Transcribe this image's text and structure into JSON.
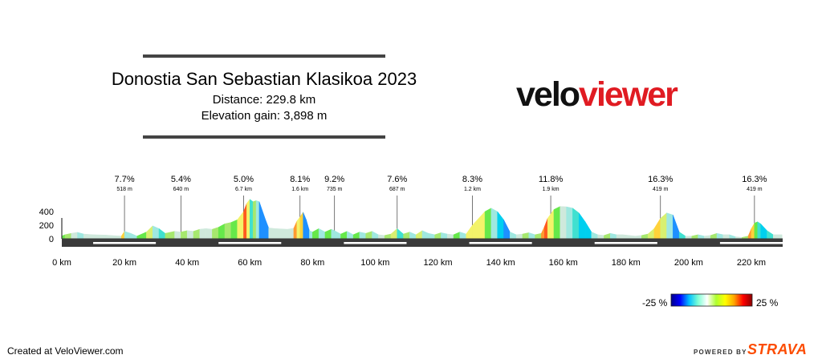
{
  "route": {
    "title": "Donostia San Sebastian Klasikoa 2023",
    "distance_label": "Distance: 229.8 km",
    "elevation_label": "Elevation gain: 3,898 m"
  },
  "logo": {
    "part1": "velo",
    "part2": "viewer"
  },
  "footer": {
    "created": "Created at VeloViewer.com",
    "powered_by": "POWERED BY",
    "strava": "STRAVA"
  },
  "gradient_legend": {
    "min_label": "-25 %",
    "max_label": "25 %",
    "colors": [
      "#00008b",
      "#0000ff",
      "#00bfff",
      "#7fffd4",
      "#ffffff",
      "#adff2f",
      "#ffff00",
      "#ffa500",
      "#ff0000",
      "#8b0000"
    ]
  },
  "chart_data": {
    "type": "area",
    "title": "",
    "xlabel": "",
    "ylabel": "",
    "xlim": [
      0,
      230
    ],
    "ylim": [
      0,
      600
    ],
    "x_ticks": [
      0,
      20,
      40,
      60,
      80,
      100,
      120,
      140,
      160,
      180,
      200,
      220
    ],
    "x_tick_labels": [
      "0 km",
      "20 km",
      "40 km",
      "60 km",
      "80 km",
      "100 km",
      "120 km",
      "140 km",
      "160 km",
      "180 km",
      "200 km",
      "220 km"
    ],
    "y_ticks": [
      0,
      200,
      400
    ],
    "y_tick_labels": [
      "0",
      "200",
      "400"
    ],
    "profile": [
      [
        0,
        40
      ],
      [
        1,
        60
      ],
      [
        3,
        80
      ],
      [
        5,
        95
      ],
      [
        7,
        70
      ],
      [
        10,
        60
      ],
      [
        14,
        55
      ],
      [
        17,
        45
      ],
      [
        19,
        40
      ],
      [
        20,
        110
      ],
      [
        22,
        80
      ],
      [
        24,
        40
      ],
      [
        27,
        100
      ],
      [
        29,
        190
      ],
      [
        31,
        150
      ],
      [
        33,
        80
      ],
      [
        36,
        110
      ],
      [
        38,
        100
      ],
      [
        40,
        120
      ],
      [
        42,
        110
      ],
      [
        44,
        140
      ],
      [
        46,
        150
      ],
      [
        48,
        140
      ],
      [
        50,
        170
      ],
      [
        52,
        220
      ],
      [
        54,
        240
      ],
      [
        56,
        280
      ],
      [
        58,
        400
      ],
      [
        59,
        520
      ],
      [
        60,
        580
      ],
      [
        61,
        545
      ],
      [
        62,
        560
      ],
      [
        63,
        545
      ],
      [
        65,
        280
      ],
      [
        66,
        160
      ],
      [
        68,
        150
      ],
      [
        70,
        145
      ],
      [
        72,
        140
      ],
      [
        74,
        155
      ],
      [
        75,
        260
      ],
      [
        76,
        320
      ],
      [
        77,
        390
      ],
      [
        78,
        280
      ],
      [
        79,
        120
      ],
      [
        80,
        100
      ],
      [
        82,
        150
      ],
      [
        84,
        100
      ],
      [
        86,
        140
      ],
      [
        87,
        120
      ],
      [
        89,
        70
      ],
      [
        91,
        110
      ],
      [
        93,
        60
      ],
      [
        95,
        100
      ],
      [
        97,
        80
      ],
      [
        99,
        110
      ],
      [
        101,
        60
      ],
      [
        103,
        50
      ],
      [
        105,
        70
      ],
      [
        107,
        150
      ],
      [
        109,
        70
      ],
      [
        111,
        100
      ],
      [
        113,
        60
      ],
      [
        115,
        120
      ],
      [
        117,
        80
      ],
      [
        119,
        60
      ],
      [
        121,
        90
      ],
      [
        123,
        70
      ],
      [
        125,
        60
      ],
      [
        127,
        100
      ],
      [
        129,
        70
      ],
      [
        131,
        200
      ],
      [
        133,
        300
      ],
      [
        135,
        400
      ],
      [
        137,
        450
      ],
      [
        139,
        400
      ],
      [
        141,
        280
      ],
      [
        143,
        100
      ],
      [
        145,
        60
      ],
      [
        147,
        70
      ],
      [
        149,
        90
      ],
      [
        151,
        60
      ],
      [
        153,
        80
      ],
      [
        154,
        180
      ],
      [
        155,
        300
      ],
      [
        157,
        430
      ],
      [
        159,
        475
      ],
      [
        161,
        470
      ],
      [
        163,
        450
      ],
      [
        165,
        380
      ],
      [
        167,
        250
      ],
      [
        169,
        100
      ],
      [
        171,
        60
      ],
      [
        173,
        50
      ],
      [
        175,
        80
      ],
      [
        177,
        60
      ],
      [
        179,
        60
      ],
      [
        181,
        50
      ],
      [
        183,
        40
      ],
      [
        185,
        50
      ],
      [
        187,
        70
      ],
      [
        189,
        150
      ],
      [
        191,
        300
      ],
      [
        193,
        380
      ],
      [
        195,
        350
      ],
      [
        197,
        100
      ],
      [
        199,
        40
      ],
      [
        201,
        40
      ],
      [
        203,
        60
      ],
      [
        205,
        40
      ],
      [
        207,
        50
      ],
      [
        209,
        80
      ],
      [
        211,
        60
      ],
      [
        213,
        60
      ],
      [
        215,
        30
      ],
      [
        217,
        20
      ],
      [
        219,
        40
      ],
      [
        220,
        150
      ],
      [
        221,
        230
      ],
      [
        222,
        250
      ],
      [
        223,
        220
      ],
      [
        225,
        120
      ],
      [
        227,
        60
      ],
      [
        229.8,
        60
      ]
    ],
    "climbs": [
      {
        "km": 20,
        "gradient": "7.7%",
        "length": "518 m"
      },
      {
        "km": 38,
        "gradient": "5.4%",
        "length": "640 m"
      },
      {
        "km": 58,
        "gradient": "5.0%",
        "length": "6.7 km"
      },
      {
        "km": 76,
        "gradient": "8.1%",
        "length": "1.6 km"
      },
      {
        "km": 87,
        "gradient": "9.2%",
        "length": "735 m"
      },
      {
        "km": 107,
        "gradient": "7.6%",
        "length": "687 m"
      },
      {
        "km": 131,
        "gradient": "8.3%",
        "length": "1.2 km"
      },
      {
        "km": 156,
        "gradient": "11.8%",
        "length": "1.9 km"
      },
      {
        "km": 191,
        "gradient": "16.3%",
        "length": "419 m"
      },
      {
        "km": 221,
        "gradient": "16.3%",
        "length": "419 m"
      }
    ]
  }
}
